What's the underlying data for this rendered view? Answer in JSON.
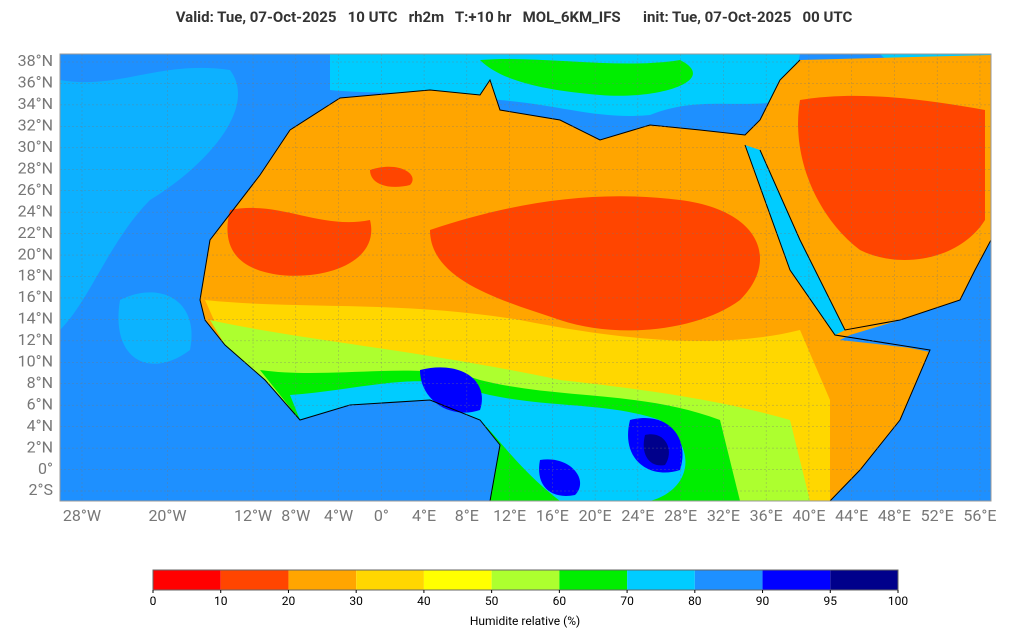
{
  "title": "Valid: Tue, 07-Oct-2025   10 UTC   rh2m   T:+10 hr   MOL_6KM_IFS      init: Tue, 07-Oct-2025   00 UTC",
  "map": {
    "lat_labels": [
      {
        "value": 38,
        "label": "38°N"
      },
      {
        "value": 36,
        "label": "36°N"
      },
      {
        "value": 34,
        "label": "34°N"
      },
      {
        "value": 32,
        "label": "32°N"
      },
      {
        "value": 30,
        "label": "30°N"
      },
      {
        "value": 28,
        "label": "28°N"
      },
      {
        "value": 26,
        "label": "26°N"
      },
      {
        "value": 24,
        "label": "24°N"
      },
      {
        "value": 22,
        "label": "22°N"
      },
      {
        "value": 20,
        "label": "20°N"
      },
      {
        "value": 18,
        "label": "18°N"
      },
      {
        "value": 16,
        "label": "16°N"
      },
      {
        "value": 14,
        "label": "14°N"
      },
      {
        "value": 12,
        "label": "12°N"
      },
      {
        "value": 10,
        "label": "10°N"
      },
      {
        "value": 8,
        "label": "8°N"
      },
      {
        "value": 6,
        "label": "6°N"
      },
      {
        "value": 4,
        "label": "4°N"
      },
      {
        "value": 2,
        "label": "2°N"
      },
      {
        "value": 0,
        "label": "0°"
      },
      {
        "value": -2,
        "label": "2°S"
      }
    ],
    "lon_labels": [
      {
        "value": -28,
        "label": "28°W"
      },
      {
        "value": -20,
        "label": "20°W"
      },
      {
        "value": -12,
        "label": "12°W"
      },
      {
        "value": -8,
        "label": "8°W"
      },
      {
        "value": -4,
        "label": "4°W"
      },
      {
        "value": 0,
        "label": "0°"
      },
      {
        "value": 4,
        "label": "4°E"
      },
      {
        "value": 8,
        "label": "8°E"
      },
      {
        "value": 12,
        "label": "12°E"
      },
      {
        "value": 16,
        "label": "16°E"
      },
      {
        "value": 20,
        "label": "20°E"
      },
      {
        "value": 24,
        "label": "24°E"
      },
      {
        "value": 28,
        "label": "28°E"
      },
      {
        "value": 32,
        "label": "32°E"
      },
      {
        "value": 36,
        "label": "36°E"
      },
      {
        "value": 40,
        "label": "40°E"
      },
      {
        "value": 44,
        "label": "44°E"
      },
      {
        "value": 48,
        "label": "48°E"
      },
      {
        "value": 52,
        "label": "52°E"
      },
      {
        "value": 56,
        "label": "56°E"
      }
    ]
  },
  "colorbar": {
    "colors": [
      "#ff0000",
      "#ff4500",
      "#ffa500",
      "#ffd700",
      "#ffff00",
      "#adff2f",
      "#00ee00",
      "#00ccff",
      "#1e90ff",
      "#0000ff",
      "#00008b"
    ],
    "ticks": [
      0,
      10,
      20,
      30,
      40,
      50,
      60,
      70,
      80,
      90,
      95,
      100
    ],
    "label": "Humidite relative (%)"
  }
}
